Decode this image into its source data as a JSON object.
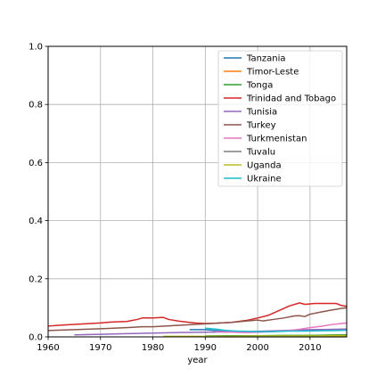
{
  "chart_data": {
    "type": "line",
    "title": "",
    "xlabel": "year",
    "ylabel": "",
    "xlim": [
      1960,
      2017
    ],
    "ylim": [
      0,
      1.0
    ],
    "xticks": [
      1960,
      1970,
      1980,
      1990,
      2000,
      2010
    ],
    "yticks": [
      0.0,
      0.2,
      0.4,
      0.6,
      0.8,
      1.0
    ],
    "ytick_labels": [
      "0.0",
      "0.2",
      "0.4",
      "0.6",
      "0.8",
      "1.0"
    ],
    "grid": true,
    "legend_position": "top-right",
    "series": [
      {
        "name": "Tanzania",
        "color": "#1f77b4",
        "x": [
          1987,
          1990,
          1993,
          1996,
          2000,
          2004,
          2008,
          2012,
          2017
        ],
        "y": [
          0.025,
          0.025,
          0.02,
          0.017,
          0.017,
          0.02,
          0.022,
          0.025,
          0.026
        ]
      },
      {
        "name": "Timor-Leste",
        "color": "#ff7f0e",
        "x": [
          2002,
          2005,
          2008,
          2011,
          2014,
          2017
        ],
        "y": [
          0.002,
          0.003,
          0.004,
          0.005,
          0.006,
          0.007
        ]
      },
      {
        "name": "Tonga",
        "color": "#2ca02c",
        "x": [
          1990,
          1995,
          2000,
          2005,
          2010,
          2015,
          2017
        ],
        "y": [
          0.003,
          0.004,
          0.004,
          0.005,
          0.005,
          0.006,
          0.006
        ]
      },
      {
        "name": "Trinidad and Tobago",
        "color": "#d62728",
        "x": [
          1960,
          1962,
          1965,
          1970,
          1972,
          1975,
          1977,
          1978,
          1980,
          1982,
          1983,
          1985,
          1988,
          1990,
          1992,
          1995,
          1998,
          2000,
          2002,
          2004,
          2006,
          2008,
          2009,
          2011,
          2013,
          2015,
          2016,
          2017
        ],
        "y": [
          0.037,
          0.04,
          0.043,
          0.048,
          0.051,
          0.053,
          0.06,
          0.065,
          0.065,
          0.067,
          0.06,
          0.054,
          0.048,
          0.046,
          0.047,
          0.05,
          0.057,
          0.065,
          0.074,
          0.09,
          0.106,
          0.117,
          0.112,
          0.115,
          0.115,
          0.115,
          0.108,
          0.105
        ]
      },
      {
        "name": "Tunisia",
        "color": "#9467bd",
        "x": [
          1965,
          1970,
          1975,
          1980,
          1985,
          1990,
          1995,
          2000,
          2005,
          2010,
          2015,
          2017
        ],
        "y": [
          0.007,
          0.009,
          0.011,
          0.013,
          0.015,
          0.016,
          0.017,
          0.019,
          0.022,
          0.025,
          0.026,
          0.027
        ]
      },
      {
        "name": "Turkey",
        "color": "#8c564b",
        "x": [
          1960,
          1965,
          1970,
          1975,
          1978,
          1980,
          1985,
          1990,
          1995,
          1998,
          2000,
          2001,
          2003,
          2005,
          2007,
          2008,
          2009,
          2010,
          2012,
          2014,
          2016,
          2017
        ],
        "y": [
          0.022,
          0.025,
          0.028,
          0.032,
          0.035,
          0.035,
          0.04,
          0.045,
          0.05,
          0.055,
          0.058,
          0.055,
          0.06,
          0.065,
          0.072,
          0.073,
          0.07,
          0.078,
          0.085,
          0.092,
          0.098,
          0.1
        ]
      },
      {
        "name": "Turkmenistan",
        "color": "#e377c2",
        "x": [
          1992,
          1995,
          1998,
          2000,
          2003,
          2006,
          2008,
          2010,
          2012,
          2014,
          2017
        ],
        "y": [
          0.018,
          0.016,
          0.015,
          0.016,
          0.018,
          0.022,
          0.026,
          0.032,
          0.036,
          0.042,
          0.048
        ]
      },
      {
        "name": "Tuvalu",
        "color": "#7f7f7f",
        "x": [
          1990,
          2000,
          2010,
          2017
        ],
        "y": [
          0.0005,
          0.0005,
          0.0005,
          0.0005
        ]
      },
      {
        "name": "Uganda",
        "color": "#bcbd22",
        "x": [
          1982,
          1985,
          1990,
          1995,
          2000,
          2005,
          2010,
          2015,
          2017
        ],
        "y": [
          0.002,
          0.002,
          0.002,
          0.002,
          0.003,
          0.003,
          0.003,
          0.004,
          0.004
        ]
      },
      {
        "name": "Ukraine",
        "color": "#17becf",
        "x": [
          1990,
          1992,
          1994,
          1996,
          1998,
          2000,
          2003,
          2006,
          2009,
          2012,
          2015,
          2017
        ],
        "y": [
          0.03,
          0.027,
          0.022,
          0.02,
          0.019,
          0.018,
          0.018,
          0.02,
          0.02,
          0.021,
          0.022,
          0.023
        ]
      }
    ]
  }
}
